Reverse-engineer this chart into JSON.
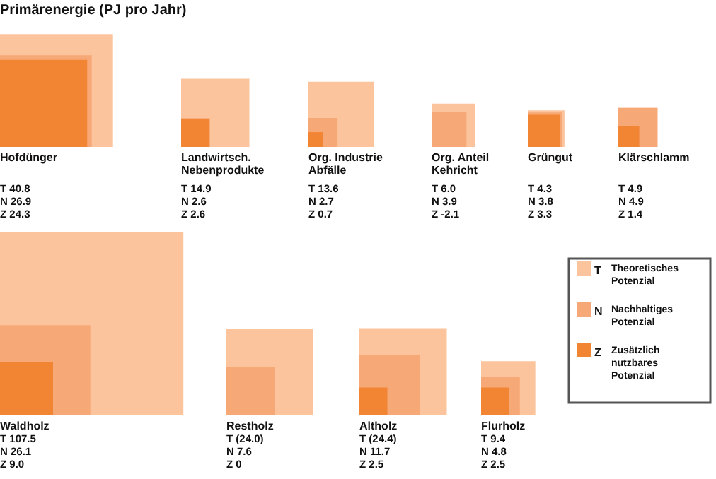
{
  "chart_data": {
    "type": "other",
    "title": "Primärenergie (PJ pro Jahr)",
    "categories": [
      "Hofdünger",
      "Landwirtsch. Nebenprodukte",
      "Org. Industrie Abfälle",
      "Org. Anteil Kehricht",
      "Grüngut",
      "Klärschlamm",
      "Waldholz",
      "Restholz",
      "Altholz",
      "Flurholz"
    ],
    "series": [
      {
        "name": "T Theoretisches Potenzial",
        "color": "#fbc49c",
        "values": [
          40.8,
          14.9,
          13.6,
          6.0,
          4.3,
          4.9,
          107.5,
          24.0,
          24.4,
          9.4
        ],
        "value_labels": [
          "T 40.8",
          "T 14.9",
          "T 13.6",
          "T 6.0",
          "T 4.3",
          "T 4.9",
          "T 107.5",
          "T (24.0)",
          "T (24.4)",
          "T 9.4"
        ]
      },
      {
        "name": "N Nachhaltiges Potenzial",
        "color": "#f7a877",
        "values": [
          26.9,
          2.6,
          2.7,
          3.9,
          3.8,
          4.9,
          26.1,
          7.6,
          11.7,
          4.8
        ],
        "value_labels": [
          "N 26.9",
          "N 2.6",
          "N 2.7",
          "N 3.9",
          "N 3.8",
          "N 4.9",
          "N 26.1",
          "N 7.6",
          "N 11.7",
          "N 4.8"
        ]
      },
      {
        "name": "Z Zusätzlich nutzbares Potenzial",
        "color": "#f28534",
        "values": [
          24.3,
          2.6,
          0.7,
          -2.1,
          3.3,
          1.4,
          9.0,
          0,
          2.5,
          2.5
        ],
        "value_labels": [
          "Z 24.3",
          "Z 2.6",
          "Z 0.7",
          "Z -2.1",
          "Z 3.3",
          "Z 1.4",
          "Z 9.0",
          "Z 0",
          "Z 2.5",
          "Z 2.5"
        ]
      }
    ],
    "legend": "right"
  }
}
